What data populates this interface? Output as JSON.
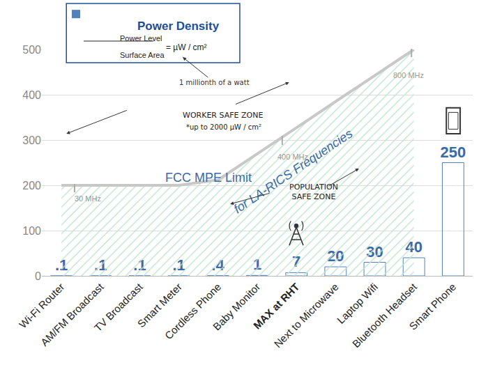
{
  "chart_data": {
    "type": "bar",
    "title": "Power Density",
    "categories": [
      "Wi-Fi Router",
      "AM/FM Broadcast",
      "TV Broadcast",
      "Smart Meter",
      "Cordless Phone",
      "Baby Monitor",
      "MAX at RHT",
      "Next to Microwave",
      "Laptop Wifi",
      "Bluetooth Headset",
      "Smart Phone"
    ],
    "values": [
      0.1,
      0.1,
      0.1,
      0.1,
      0.4,
      1,
      7,
      20,
      30,
      40,
      250
    ],
    "value_labels": [
      ".1",
      ".1",
      ".1",
      ".1",
      ".4",
      "1",
      "7",
      "20",
      "30",
      "40",
      "250"
    ],
    "color": "#4f81bd",
    "data_labels": true,
    "ylim": [
      0,
      500
    ],
    "yticks": [
      0,
      100,
      200,
      300,
      400,
      500
    ],
    "grid": true,
    "limit": {
      "name": "FCC MPE Limit",
      "type": "line",
      "color": "#c8c8c8",
      "values": [
        200,
        200,
        200,
        200,
        212,
        269,
        327,
        385,
        442,
        500,
        null
      ]
    },
    "annotations": [
      "Power Level",
      "Surface Area",
      "= µW / cm²",
      "1 millionth of a watt",
      "WORKER SAFE ZONE",
      "*up to 2000 µW / cm²",
      "POPULATION\nSAFE ZONE",
      "for LA-RICS Frequencies",
      "30 MHz",
      "400 MHz",
      "800 MHz"
    ]
  }
}
